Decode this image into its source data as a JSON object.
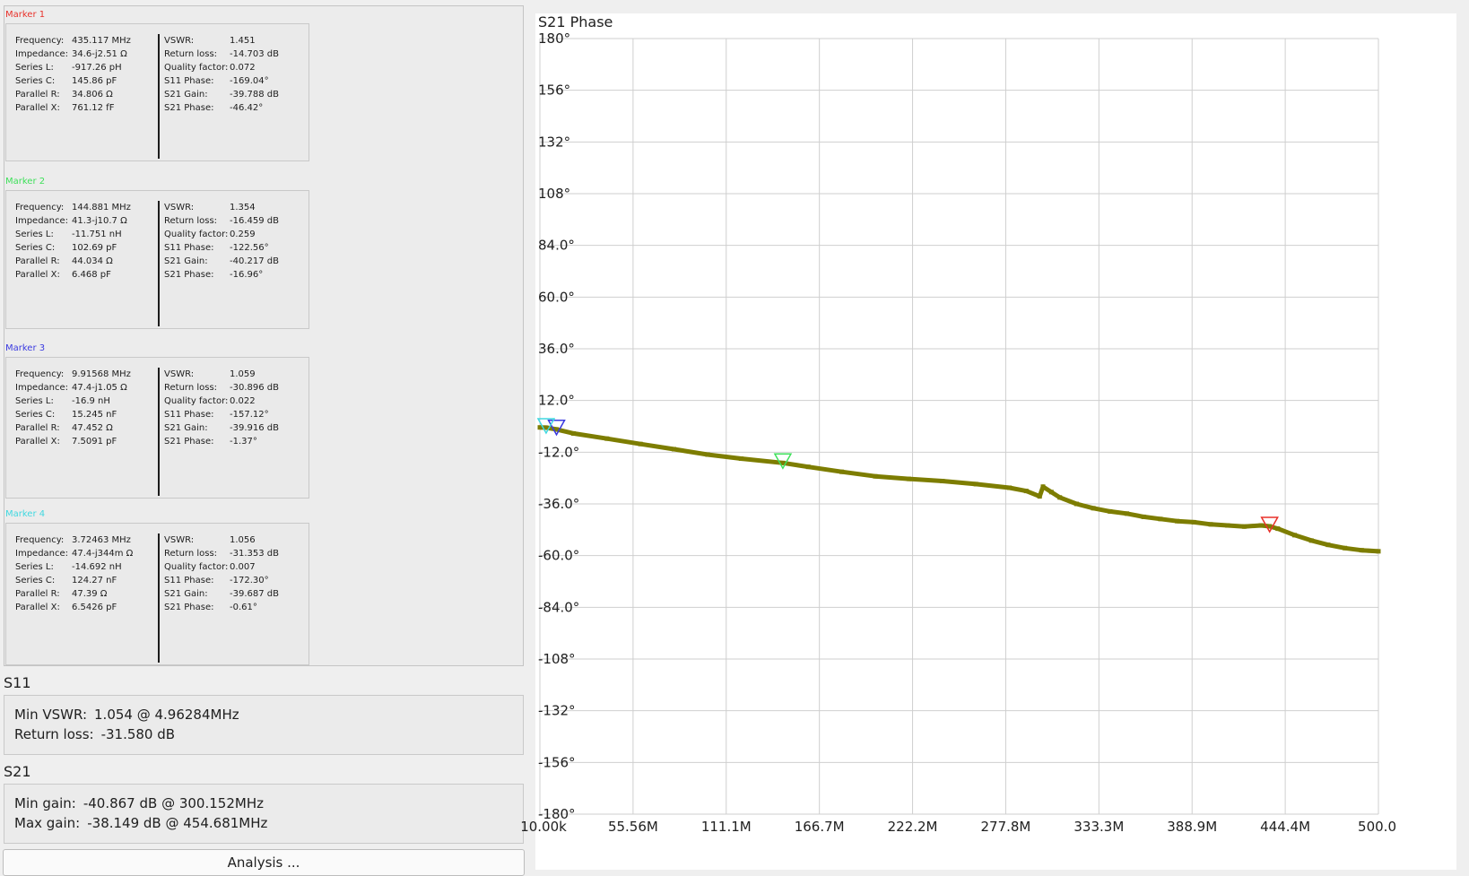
{
  "markers": [
    {
      "title": "Marker 1",
      "color": "#e8312a",
      "left_rows": [
        {
          "label": "Frequency:",
          "value": "435.117 MHz"
        },
        {
          "label": "Impedance:",
          "value": "34.6-j2.51 Ω"
        },
        {
          "label": "Series L:",
          "value": "-917.26 pH"
        },
        {
          "label": "Series C:",
          "value": "145.86 pF"
        },
        {
          "label": "Parallel R:",
          "value": "34.806 Ω"
        },
        {
          "label": "Parallel X:",
          "value": "761.12 fF"
        }
      ],
      "right_rows": [
        {
          "label": "VSWR:",
          "value": "1.451"
        },
        {
          "label": "Return loss:",
          "value": "-14.703 dB"
        },
        {
          "label": "Quality factor:",
          "value": "0.072"
        },
        {
          "label": "S11 Phase:",
          "value": "-169.04°"
        },
        {
          "label": "S21 Gain:",
          "value": "-39.788 dB"
        },
        {
          "label": "S21 Phase:",
          "value": "-46.42°"
        }
      ]
    },
    {
      "title": "Marker 2",
      "color": "#3ee05a",
      "left_rows": [
        {
          "label": "Frequency:",
          "value": "144.881 MHz"
        },
        {
          "label": "Impedance:",
          "value": "41.3-j10.7 Ω"
        },
        {
          "label": "Series L:",
          "value": "-11.751 nH"
        },
        {
          "label": "Series C:",
          "value": "102.69 pF"
        },
        {
          "label": "Parallel R:",
          "value": "44.034 Ω"
        },
        {
          "label": "Parallel X:",
          "value": "6.468 pF"
        }
      ],
      "right_rows": [
        {
          "label": "VSWR:",
          "value": "1.354"
        },
        {
          "label": "Return loss:",
          "value": "-16.459 dB"
        },
        {
          "label": "Quality factor:",
          "value": "0.259"
        },
        {
          "label": "S11 Phase:",
          "value": "-122.56°"
        },
        {
          "label": "S21 Gain:",
          "value": "-40.217 dB"
        },
        {
          "label": "S21 Phase:",
          "value": "-16.96°"
        }
      ]
    },
    {
      "title": "Marker 3",
      "color": "#3a3ae0",
      "left_rows": [
        {
          "label": "Frequency:",
          "value": "9.91568 MHz"
        },
        {
          "label": "Impedance:",
          "value": "47.4-j1.05 Ω"
        },
        {
          "label": "Series L:",
          "value": "-16.9 nH"
        },
        {
          "label": "Series C:",
          "value": "15.245 nF"
        },
        {
          "label": "Parallel R:",
          "value": "47.452 Ω"
        },
        {
          "label": "Parallel X:",
          "value": "7.5091 pF"
        }
      ],
      "right_rows": [
        {
          "label": "VSWR:",
          "value": "1.059"
        },
        {
          "label": "Return loss:",
          "value": "-30.896 dB"
        },
        {
          "label": "Quality factor:",
          "value": "0.022"
        },
        {
          "label": "S11 Phase:",
          "value": "-157.12°"
        },
        {
          "label": "S21 Gain:",
          "value": "-39.916 dB"
        },
        {
          "label": "S21 Phase:",
          "value": "-1.37°"
        }
      ]
    },
    {
      "title": "Marker 4",
      "color": "#40d8e0",
      "left_rows": [
        {
          "label": "Frequency:",
          "value": "3.72463 MHz"
        },
        {
          "label": "Impedance:",
          "value": "47.4-j344m Ω"
        },
        {
          "label": "Series L:",
          "value": "-14.692 nH"
        },
        {
          "label": "Series C:",
          "value": "124.27 nF"
        },
        {
          "label": "Parallel R:",
          "value": "47.39 Ω"
        },
        {
          "label": "Parallel X:",
          "value": "6.5426 pF"
        }
      ],
      "right_rows": [
        {
          "label": "VSWR:",
          "value": "1.056"
        },
        {
          "label": "Return loss:",
          "value": "-31.353 dB"
        },
        {
          "label": "Quality factor:",
          "value": "0.007"
        },
        {
          "label": "S11 Phase:",
          "value": "-172.30°"
        },
        {
          "label": "S21 Gain:",
          "value": "-39.687 dB"
        },
        {
          "label": "S21 Phase:",
          "value": "-0.61°"
        }
      ]
    }
  ],
  "s11": {
    "title": "S11",
    "min_vswr_label": "Min VSWR:",
    "min_vswr_value": "1.054 @ 4.96284MHz",
    "return_loss_label": "Return loss:",
    "return_loss_value": "-31.580 dB"
  },
  "s21": {
    "title": "S21",
    "min_gain_label": "Min gain:",
    "min_gain_value": "-40.867 dB @ 300.152MHz",
    "max_gain_label": "Max gain:",
    "max_gain_value": "-38.149 dB @ 454.681MHz"
  },
  "analysis_button": "Analysis ...",
  "chart_data": {
    "type": "scatter",
    "title": "S21 Phase",
    "xlabel": "",
    "ylabel": "",
    "xlim_hz": [
      10000,
      500000000
    ],
    "ylim": [
      -180,
      180
    ],
    "grid": true,
    "y_ticks": [
      "180°",
      "156°",
      "132°",
      "108°",
      "84.0°",
      "60.0°",
      "36.0°",
      "12.0°",
      "-12.0°",
      "-36.0°",
      "-60.0°",
      "-84.0°",
      "-108°",
      "-132°",
      "-156°",
      "-180°"
    ],
    "x_ticks": [
      "10.00k",
      "55.56M",
      "111.1M",
      "166.7M",
      "222.2M",
      "277.8M",
      "333.3M",
      "388.9M",
      "444.4M",
      "500.0"
    ],
    "trace_color": "#7d7d00",
    "series": [
      {
        "x_mhz": [
          0.01,
          3.7,
          9.9,
          20,
          40,
          60,
          80,
          100,
          120,
          144.9,
          160,
          180,
          200,
          220,
          240,
          260,
          280,
          290,
          298,
          300,
          305,
          310,
          320,
          330,
          340,
          350,
          360,
          370,
          380,
          390,
          400,
          410,
          420,
          430,
          435.1,
          440,
          450,
          460,
          470,
          480,
          490,
          500
        ],
        "y_deg": [
          -0.5,
          -0.6,
          -1.4,
          -3.3,
          -5.7,
          -8.2,
          -10.6,
          -13.1,
          -15.0,
          -17.0,
          -18.8,
          -21.1,
          -23.2,
          -24.4,
          -25.4,
          -26.8,
          -28.5,
          -30.0,
          -32.5,
          -28.0,
          -30.5,
          -33.0,
          -36.0,
          -38.0,
          -39.5,
          -40.5,
          -42.0,
          -43.0,
          -44.0,
          -44.5,
          -45.5,
          -46.0,
          -46.5,
          -46.0,
          -46.4,
          -47.5,
          -50.5,
          -53.0,
          -55.0,
          -56.5,
          -57.5,
          -58.0
        ]
      }
    ],
    "markers": [
      {
        "name": "Marker 1",
        "x_mhz": 435.117,
        "y_deg": -46.42,
        "color": "#e8312a"
      },
      {
        "name": "Marker 2",
        "x_mhz": 144.881,
        "y_deg": -16.96,
        "color": "#3ee05a"
      },
      {
        "name": "Marker 3",
        "x_mhz": 9.91568,
        "y_deg": -1.37,
        "color": "#3a3ae0"
      },
      {
        "name": "Marker 4",
        "x_mhz": 3.72463,
        "y_deg": -0.61,
        "color": "#40d8e0"
      }
    ]
  }
}
